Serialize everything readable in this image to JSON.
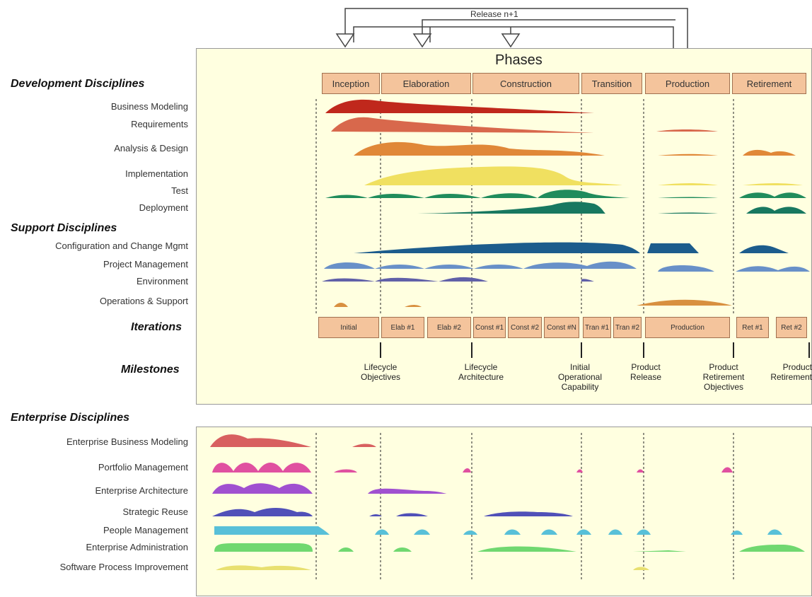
{
  "release_label": "Release n+1",
  "phases_title": "Phases",
  "headings": {
    "development": "Development Disciplines",
    "support": "Support Disciplines",
    "iterations": "Iterations",
    "milestones": "Milestones",
    "enterprise": "Enterprise Disciplines"
  },
  "phases": [
    "Inception",
    "Elaboration",
    "Construction",
    "Transition",
    "Production",
    "Retirement"
  ],
  "development_disciplines": [
    "Business Modeling",
    "Requirements",
    "Analysis & Design",
    "Implementation",
    "Test",
    "Deployment"
  ],
  "support_disciplines": [
    "Configuration and Change Mgmt",
    "Project Management",
    "Environment",
    "Operations & Support"
  ],
  "iterations": [
    "Initial",
    "Elab #1",
    "Elab #2",
    "Const #1",
    "Const #2",
    "Const #N",
    "Tran #1",
    "Tran #2",
    "Production",
    "Ret #1",
    "Ret #2"
  ],
  "milestones": [
    "Lifecycle\nObjectives",
    "Lifecycle\nArchitecture",
    "Initial\nOperational\nCapability",
    "Product\nRelease",
    "Product\nRetirement\nObjectives",
    "Product\nRetirement"
  ],
  "enterprise_disciplines": [
    "Enterprise Business Modeling",
    "Portfolio Management",
    "Enterprise Architecture",
    "Strategic Reuse",
    "People Management",
    "Enterprise Administration",
    "Software Process Improvement"
  ],
  "colors": {
    "panel": "#ffffe0",
    "phase_box": "#f4c49c",
    "business_modeling": "#c0281c",
    "requirements": "#d8684c",
    "analysis_design": "#e08838",
    "implementation": "#f0e060",
    "test": "#208c5c",
    "deployment": "#187860",
    "config_change": "#1c5c8c",
    "project_mgmt": "#6890c8",
    "environment": "#6060a8",
    "operations": "#d89040",
    "ent_business_modeling": "#d86060",
    "portfolio": "#e050a0",
    "ent_architecture": "#a050d0",
    "strategic_reuse": "#5050b8",
    "people": "#58c0d8",
    "ent_admin": "#70d870",
    "spi": "#e8e070"
  }
}
